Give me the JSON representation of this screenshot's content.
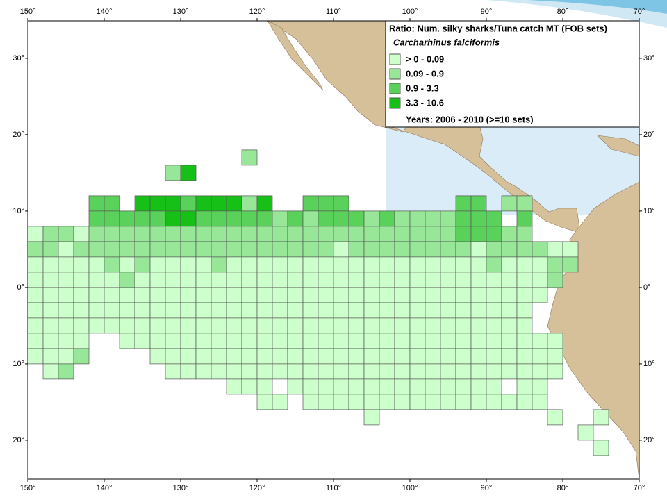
{
  "map": {
    "xlim": [
      150,
      70
    ],
    "ylim": [
      -25.1,
      34.9
    ],
    "xticks": [
      {
        "value": 150,
        "label": "150°"
      },
      {
        "value": 140,
        "label": "140°"
      },
      {
        "value": 130,
        "label": "130°"
      },
      {
        "value": 120,
        "label": "120°"
      },
      {
        "value": 110,
        "label": "110°"
      },
      {
        "value": 100,
        "label": "100°"
      },
      {
        "value": 90,
        "label": "90°"
      },
      {
        "value": 80,
        "label": "80°"
      },
      {
        "value": 70,
        "label": "70°"
      }
    ],
    "yticks": [
      {
        "value": 30,
        "label": "30°"
      },
      {
        "value": 20,
        "label": "20°"
      },
      {
        "value": 10,
        "label": "10°"
      },
      {
        "value": 0,
        "label": "0°"
      },
      {
        "value": -10,
        "label": "10°"
      },
      {
        "value": -20,
        "label": "20°"
      }
    ],
    "legend": {
      "title": "Ratio: Num. silky sharks/Tuna catch MT (FOB sets)",
      "subtitle": "Carcharhinus falciformis",
      "items": [
        {
          "label": "> 0 - 0.09",
          "color": "#ccffcc"
        },
        {
          "label": "0.09 - 0.9",
          "color": "#98e698"
        },
        {
          "label": "0.9 - 3.3",
          "color": "#5ad15a"
        },
        {
          "label": "3.3 - 10.6",
          "color": "#16c016"
        }
      ],
      "note": "Years: 2006 - 2010  (>=10 sets)"
    },
    "cells": [
      {
        "lat": 18,
        "lon": 122,
        "classes": [
          1
        ]
      },
      {
        "lat": 16,
        "lon": 132,
        "classes": [
          1,
          3
        ]
      },
      {
        "lat": 12,
        "lon": 142,
        "classes": [
          2,
          2,
          null,
          3,
          3,
          3,
          2,
          3,
          3,
          3,
          1,
          3,
          null,
          null,
          2,
          2,
          2
        ]
      },
      {
        "lat": 12,
        "lon": 94,
        "classes": [
          2,
          2,
          null,
          1,
          1
        ]
      },
      {
        "lat": 10,
        "lon": 142,
        "classes": [
          2,
          2,
          2,
          2,
          2,
          3,
          3,
          2,
          2,
          2,
          2,
          2,
          1,
          2,
          1,
          2,
          2,
          2,
          1,
          2,
          1,
          1,
          1,
          1,
          2,
          2,
          2,
          null,
          2
        ]
      },
      {
        "lat": 8,
        "lon": 150,
        "classes": [
          0,
          1,
          1,
          0,
          1,
          1,
          1,
          1,
          1,
          1,
          1,
          1,
          1,
          1,
          1,
          1,
          1,
          1,
          1,
          1,
          1,
          1,
          1,
          1,
          1,
          1,
          1,
          1,
          2,
          2,
          2,
          1,
          1
        ]
      },
      {
        "lat": 6,
        "lon": 150,
        "classes": [
          1,
          1,
          0,
          1,
          1,
          1,
          1,
          1,
          1,
          1,
          1,
          1,
          1,
          1,
          1,
          1,
          1,
          1,
          1,
          1,
          0,
          1,
          1,
          1,
          1,
          1,
          1,
          1,
          1,
          0,
          1,
          1,
          1,
          1,
          0,
          0
        ]
      },
      {
        "lat": 4,
        "lon": 150,
        "classes": [
          0,
          0,
          0,
          0,
          0,
          1,
          0,
          1,
          0,
          0,
          0,
          0,
          1,
          0,
          0,
          0,
          0,
          0,
          0,
          0,
          0,
          0,
          0,
          0,
          0,
          0,
          0,
          0,
          0,
          0,
          1,
          0,
          0,
          0,
          1,
          1
        ]
      },
      {
        "lat": 2,
        "lon": 150,
        "classes": [
          0,
          0,
          0,
          0,
          0,
          0,
          1,
          0,
          0,
          0,
          0,
          0,
          0,
          0,
          0,
          0,
          0,
          0,
          0,
          0,
          0,
          0,
          0,
          0,
          0,
          0,
          0,
          0,
          0,
          0,
          0,
          0,
          0,
          0,
          1
        ]
      },
      {
        "lat": 0,
        "lon": 150,
        "classes": [
          0,
          0,
          0,
          0,
          0,
          0,
          0,
          0,
          0,
          0,
          0,
          0,
          0,
          0,
          0,
          0,
          0,
          0,
          0,
          0,
          0,
          0,
          0,
          0,
          0,
          0,
          0,
          0,
          0,
          0,
          0,
          0,
          0,
          0
        ]
      },
      {
        "lat": -2,
        "lon": 150,
        "classes": [
          0,
          0,
          0,
          0,
          0,
          0,
          0,
          0,
          0,
          0,
          0,
          0,
          0,
          0,
          0,
          0,
          0,
          0,
          0,
          0,
          0,
          0,
          0,
          0,
          0,
          0,
          0,
          0,
          0,
          0,
          0,
          0,
          0
        ]
      },
      {
        "lat": -4,
        "lon": 150,
        "classes": [
          0,
          0,
          0,
          0,
          0,
          0,
          0,
          0,
          0,
          0,
          0,
          0,
          0,
          0,
          0,
          0,
          0,
          0,
          0,
          0,
          0,
          0,
          0,
          0,
          0,
          0,
          0,
          0,
          0,
          0,
          0,
          0,
          0
        ]
      },
      {
        "lat": -6,
        "lon": 150,
        "classes": [
          0,
          0,
          0,
          0,
          null,
          null,
          0,
          0,
          0,
          0,
          0,
          0,
          0,
          0,
          0,
          0,
          0,
          0,
          0,
          0,
          0,
          0,
          0,
          0,
          0,
          0,
          0,
          0,
          0,
          0,
          0,
          0,
          0,
          0,
          0
        ]
      },
      {
        "lat": -8,
        "lon": 150,
        "classes": [
          0,
          0,
          0,
          1,
          null,
          null,
          null,
          null,
          0,
          0,
          0,
          0,
          0,
          0,
          0,
          0,
          0,
          0,
          0,
          0,
          0,
          0,
          0,
          0,
          0,
          0,
          0,
          0,
          0,
          0,
          0,
          0,
          0,
          0,
          0
        ]
      },
      {
        "lat": -10,
        "lon": 148,
        "classes": [
          0,
          1,
          null,
          null,
          null,
          null,
          null,
          null,
          0,
          0,
          0,
          0,
          0,
          0,
          0,
          0,
          0,
          0,
          0,
          0,
          0,
          0,
          0,
          0,
          0,
          0,
          0,
          0,
          0,
          0,
          0,
          0,
          0,
          0
        ]
      },
      {
        "lat": -12,
        "lon": 124,
        "classes": [
          0,
          0,
          0,
          null,
          0,
          0,
          0,
          0,
          0,
          0,
          0,
          0,
          0,
          0,
          0,
          0,
          0,
          0,
          null,
          0,
          0
        ]
      },
      {
        "lat": -14,
        "lon": 120,
        "classes": [
          0,
          0,
          null,
          0,
          0,
          0,
          0,
          0,
          0,
          0,
          0,
          0,
          0,
          0,
          0,
          0,
          0,
          0,
          0
        ]
      },
      {
        "lat": -16,
        "lon": 106,
        "classes": [
          0,
          null,
          null,
          null,
          null,
          null,
          null,
          null,
          null,
          null,
          null,
          null,
          0,
          null,
          null,
          0
        ]
      },
      {
        "lat": -18,
        "lon": 78,
        "classes": [
          0
        ]
      },
      {
        "lat": -20,
        "lon": 76,
        "classes": [
          0
        ]
      }
    ]
  }
}
